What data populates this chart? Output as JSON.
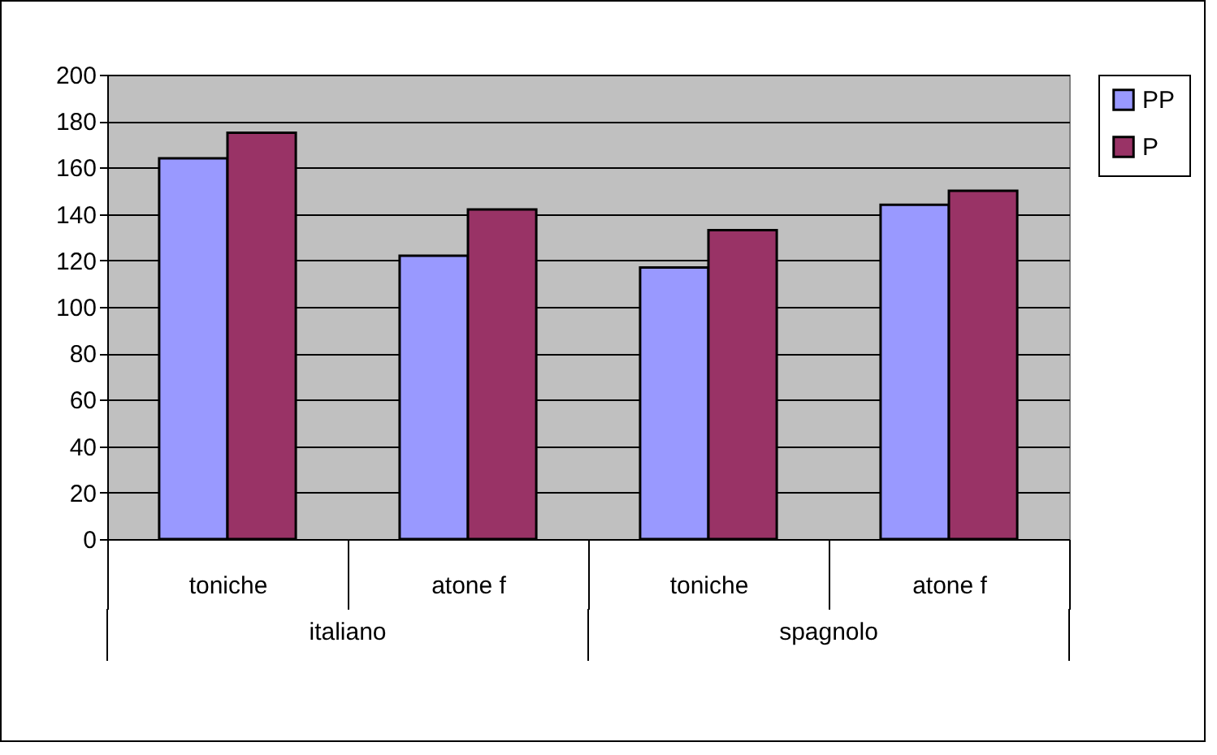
{
  "chart_data": {
    "type": "bar",
    "categories": [
      "toniche",
      "atone f",
      "toniche",
      "atone f"
    ],
    "series": [
      {
        "name": "PP",
        "color": "#9999ff",
        "values": [
          164,
          122,
          117,
          144
        ]
      },
      {
        "name": "P",
        "color": "#993366",
        "values": [
          175,
          142,
          133,
          150
        ]
      }
    ],
    "ylim": [
      0,
      200
    ],
    "yticks": [
      0,
      20,
      40,
      60,
      80,
      100,
      120,
      140,
      160,
      180,
      200
    ],
    "grid": true,
    "legend": "right",
    "annotations": [
      "italiano",
      "spagnolo"
    ]
  }
}
